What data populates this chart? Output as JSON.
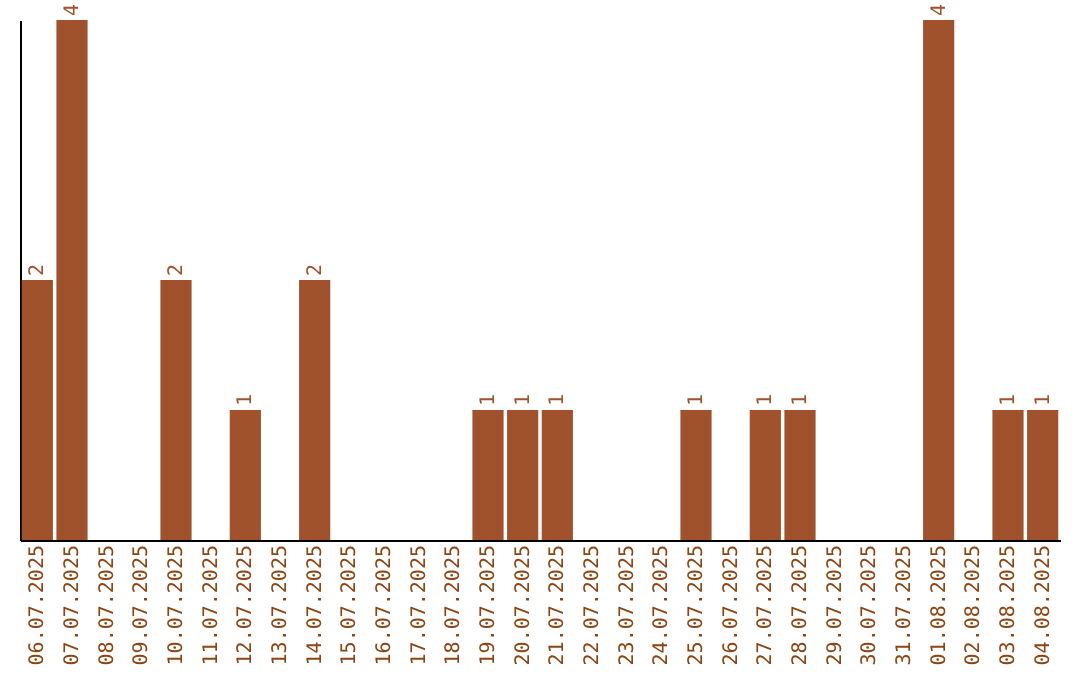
{
  "chart_data": {
    "type": "bar",
    "categories": [
      "06.07.2025",
      "07.07.2025",
      "08.07.2025",
      "09.07.2025",
      "10.07.2025",
      "11.07.2025",
      "12.07.2025",
      "13.07.2025",
      "14.07.2025",
      "15.07.2025",
      "16.07.2025",
      "17.07.2025",
      "18.07.2025",
      "19.07.2025",
      "20.07.2025",
      "21.07.2025",
      "22.07.2025",
      "23.07.2025",
      "24.07.2025",
      "25.07.2025",
      "26.07.2025",
      "27.07.2025",
      "28.07.2025",
      "29.07.2025",
      "30.07.2025",
      "31.07.2025",
      "01.08.2025",
      "02.08.2025",
      "03.08.2025",
      "04.08.2025"
    ],
    "values": [
      2,
      4,
      0,
      0,
      2,
      0,
      1,
      0,
      2,
      0,
      0,
      0,
      0,
      1,
      1,
      1,
      0,
      0,
      0,
      1,
      0,
      1,
      1,
      0,
      0,
      0,
      4,
      0,
      1,
      1
    ],
    "value_labels": [
      "2",
      "4",
      null,
      null,
      "2",
      null,
      "1",
      null,
      "2",
      null,
      null,
      null,
      null,
      "1",
      "1",
      "1",
      null,
      null,
      null,
      "1",
      null,
      "1",
      "1",
      null,
      null,
      null,
      "4",
      null,
      "1",
      "1"
    ],
    "color": "#a0522d",
    "grid": false,
    "tick_labels": "x"
  }
}
